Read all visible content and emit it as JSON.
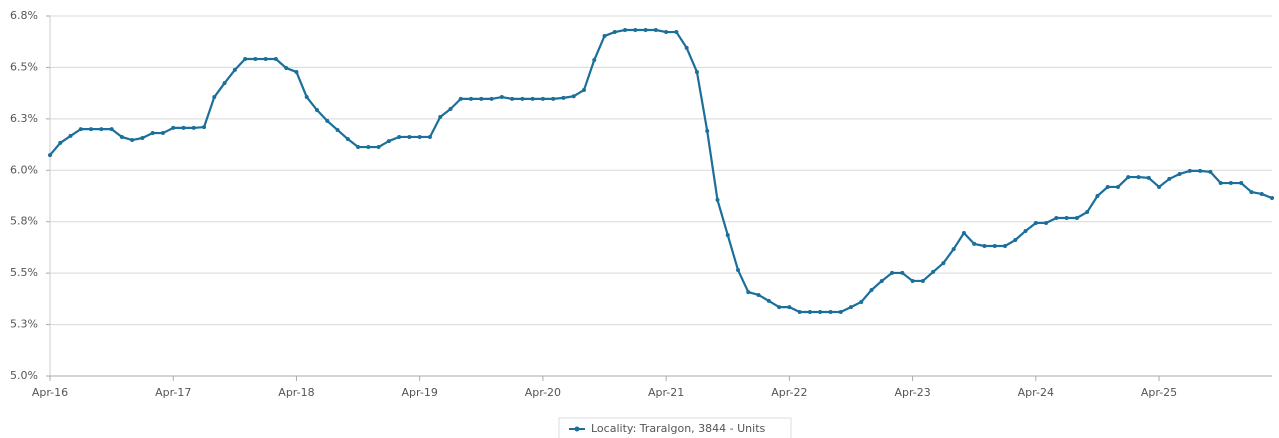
{
  "chart_data": {
    "type": "line",
    "categories": [
      "Apr-16",
      null,
      null,
      null,
      null,
      null,
      null,
      null,
      null,
      null,
      null,
      null,
      "Apr-17",
      null,
      null,
      null,
      null,
      null,
      null,
      null,
      null,
      null,
      null,
      null,
      "Apr-18",
      null,
      null,
      null,
      null,
      null,
      null,
      null,
      null,
      null,
      null,
      null,
      "Apr-19",
      null,
      null,
      null,
      null,
      null,
      null,
      null,
      null,
      null,
      null,
      null,
      "Apr-20",
      null,
      null,
      null,
      null,
      null,
      null,
      null,
      null,
      null,
      null,
      null,
      "Apr-21",
      null,
      null,
      null,
      null,
      null,
      null,
      null,
      null,
      null,
      null,
      null,
      "Apr-22",
      null,
      null,
      null,
      null,
      null,
      null,
      null,
      null,
      null,
      null,
      null,
      "Apr-23",
      null,
      null,
      null,
      null,
      null,
      null,
      null,
      null,
      null,
      null,
      null,
      "Apr-24",
      null,
      null,
      null,
      null,
      null,
      null,
      null,
      null,
      null,
      null,
      null,
      "Apr-25",
      null,
      null,
      null,
      null,
      null,
      null,
      null,
      null,
      null,
      null,
      null
    ],
    "series": [
      {
        "name": "Locality: Traralgon, 3844 - Units",
        "color": "#1b6f9a",
        "values": [
          6.074,
          6.133,
          6.167,
          6.2,
          6.2,
          6.2,
          6.2,
          6.162,
          6.147,
          6.157,
          6.181,
          6.181,
          6.206,
          6.206,
          6.206,
          6.21,
          6.356,
          6.424,
          6.488,
          6.541,
          6.541,
          6.541,
          6.541,
          6.497,
          6.478,
          6.356,
          6.293,
          6.24,
          6.196,
          6.152,
          6.113,
          6.113,
          6.113,
          6.142,
          6.162,
          6.162,
          6.162,
          6.162,
          6.259,
          6.298,
          6.347,
          6.347,
          6.347,
          6.347,
          6.356,
          6.347,
          6.347,
          6.347,
          6.347,
          6.347,
          6.352,
          6.36,
          6.39,
          6.536,
          6.653,
          6.672,
          6.682,
          6.682,
          6.682,
          6.682,
          6.672,
          6.672,
          6.595,
          6.478,
          6.191,
          5.856,
          5.685,
          5.515,
          5.408,
          5.394,
          5.365,
          5.335,
          5.335,
          5.311,
          5.311,
          5.311,
          5.311,
          5.311,
          5.335,
          5.36,
          5.418,
          5.462,
          5.501,
          5.501,
          5.462,
          5.462,
          5.506,
          5.549,
          5.617,
          5.695,
          5.642,
          5.632,
          5.632,
          5.632,
          5.661,
          5.705,
          5.744,
          5.744,
          5.768,
          5.768,
          5.768,
          5.797,
          5.875,
          5.919,
          5.919,
          5.967,
          5.967,
          5.963,
          5.919,
          5.958,
          5.982,
          5.997,
          5.997,
          5.992,
          5.938,
          5.938,
          5.938,
          5.894,
          5.885,
          5.865
        ]
      }
    ],
    "ylim": [
      5.0,
      6.75
    ],
    "yticks": [
      {
        "value": 5.0,
        "label": "5.0%"
      },
      {
        "value": 5.25,
        "label": "5.3%"
      },
      {
        "value": 5.5,
        "label": "5.5%"
      },
      {
        "value": 5.75,
        "label": "5.8%"
      },
      {
        "value": 6.0,
        "label": "6.0%"
      },
      {
        "value": 6.25,
        "label": "6.3%"
      },
      {
        "value": 6.5,
        "label": "6.5%"
      },
      {
        "value": 6.75,
        "label": "6.8%"
      }
    ],
    "grid": true
  }
}
